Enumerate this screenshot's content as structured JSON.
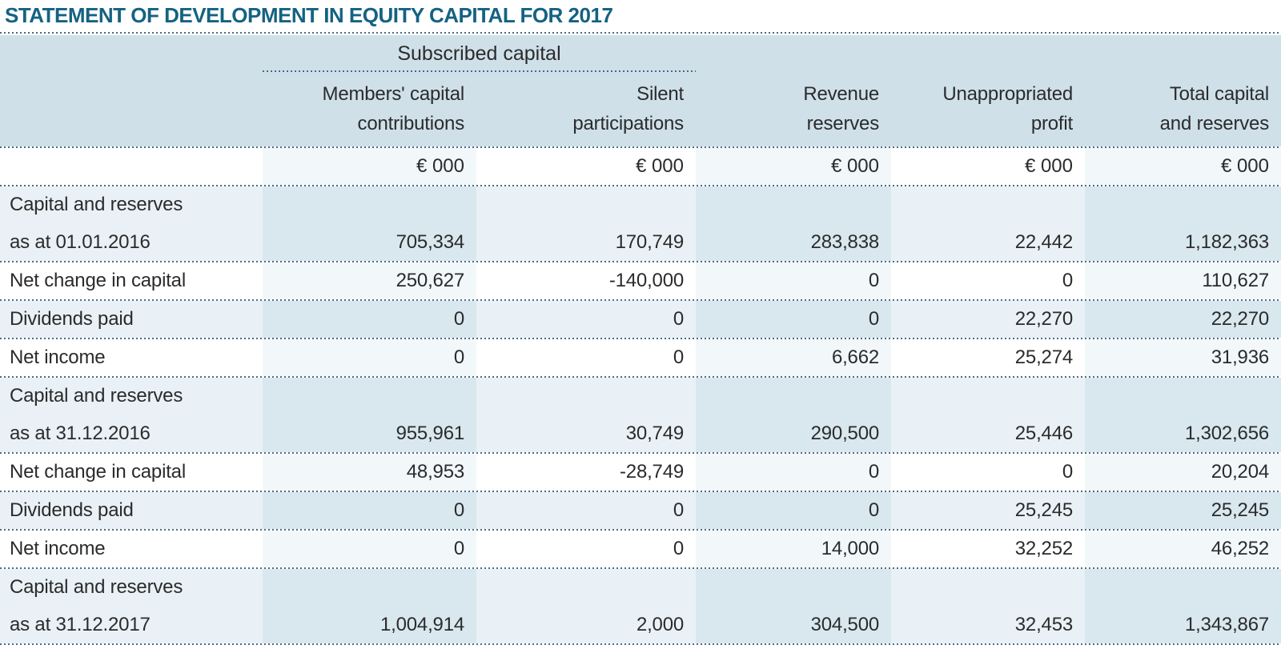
{
  "page_title": "STATEMENT OF DEVELOPMENT IN EQUITY CAPITAL FOR 2017",
  "table": {
    "group_header": "Subscribed capital",
    "column_headers": [
      {
        "line1": "Members' capital",
        "line2": "contributions"
      },
      {
        "line1": "Silent",
        "line2": "participations"
      },
      {
        "line1": "Revenue",
        "line2": "reserves"
      },
      {
        "line1": "Unappropriated",
        "line2": "profit"
      },
      {
        "line1": "Total capital",
        "line2": "and reserves"
      }
    ],
    "unit_label": "€ 000",
    "rows": [
      {
        "label1": "Capital and reserves",
        "label2": "as at 01.01.2016",
        "values": [
          "705,334",
          "170,749",
          "283,838",
          "22,442",
          "1,182,363"
        ]
      },
      {
        "label1": "Net change in capital",
        "values": [
          "250,627",
          "-140,000",
          "0",
          "0",
          "110,627"
        ]
      },
      {
        "label1": "Dividends paid",
        "values": [
          "0",
          "0",
          "0",
          "22,270",
          "22,270"
        ]
      },
      {
        "label1": "Net income",
        "values": [
          "0",
          "0",
          "6,662",
          "25,274",
          "31,936"
        ]
      },
      {
        "label1": "Capital and reserves",
        "label2": "as at 31.12.2016",
        "values": [
          "955,961",
          "30,749",
          "290,500",
          "25,446",
          "1,302,656"
        ]
      },
      {
        "label1": "Net change in capital",
        "values": [
          "48,953",
          "-28,749",
          "0",
          "0",
          "20,204"
        ]
      },
      {
        "label1": "Dividends paid",
        "values": [
          "0",
          "0",
          "0",
          "25,245",
          "25,245"
        ]
      },
      {
        "label1": "Net income",
        "values": [
          "0",
          "0",
          "14,000",
          "32,252",
          "46,252"
        ]
      },
      {
        "label1": "Capital and reserves",
        "label2": "as at 31.12.2017",
        "values": [
          "1,004,914",
          "2,000",
          "304,500",
          "32,453",
          "1,343,867"
        ]
      }
    ]
  },
  "colors": {
    "title": "#156282",
    "header_band": "#cfe0e9",
    "row_blue": "#e9f1f6",
    "cell_blue": "#d9e7ef",
    "cell_white_tint": "#f2f7fa",
    "dotted_line": "#4a6b84",
    "text": "#2b2b2b"
  }
}
